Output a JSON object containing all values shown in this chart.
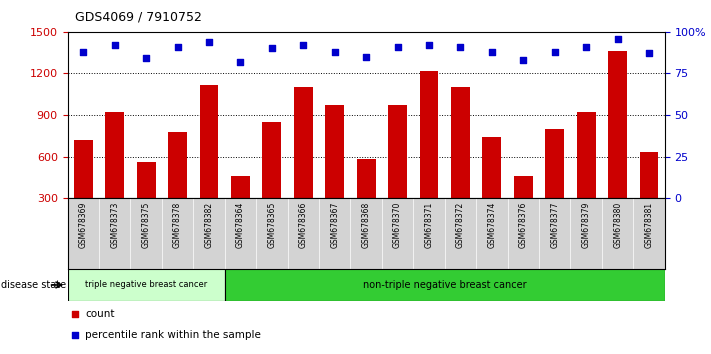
{
  "title": "GDS4069 / 7910752",
  "samples": [
    "GSM678369",
    "GSM678373",
    "GSM678375",
    "GSM678378",
    "GSM678382",
    "GSM678364",
    "GSM678365",
    "GSM678366",
    "GSM678367",
    "GSM678368",
    "GSM678370",
    "GSM678371",
    "GSM678372",
    "GSM678374",
    "GSM678376",
    "GSM678377",
    "GSM678379",
    "GSM678380",
    "GSM678381"
  ],
  "counts": [
    720,
    920,
    560,
    780,
    1120,
    460,
    850,
    1100,
    970,
    580,
    970,
    1220,
    1100,
    740,
    460,
    800,
    920,
    1360,
    630
  ],
  "percentile_ranks": [
    88,
    92,
    84,
    91,
    94,
    82,
    90,
    92,
    88,
    85,
    91,
    92,
    91,
    88,
    83,
    88,
    91,
    96,
    87
  ],
  "bar_color": "#cc0000",
  "dot_color": "#0000cc",
  "group1_count": 5,
  "group1_label": "triple negative breast cancer",
  "group2_label": "non-triple negative breast cancer",
  "group1_color": "#ccffcc",
  "group2_color": "#33cc33",
  "disease_state_label": "disease state",
  "ylim_left": [
    300,
    1500
  ],
  "ylim_right": [
    0,
    100
  ],
  "yticks_left": [
    300,
    600,
    900,
    1200,
    1500
  ],
  "yticks_right": [
    0,
    25,
    50,
    75,
    100
  ],
  "legend_count": "count",
  "legend_percentile": "percentile rank within the sample",
  "tick_bg_color": "#d3d3d3",
  "plot_bg_color": "#ffffff",
  "grid_lines": [
    600,
    900,
    1200
  ]
}
